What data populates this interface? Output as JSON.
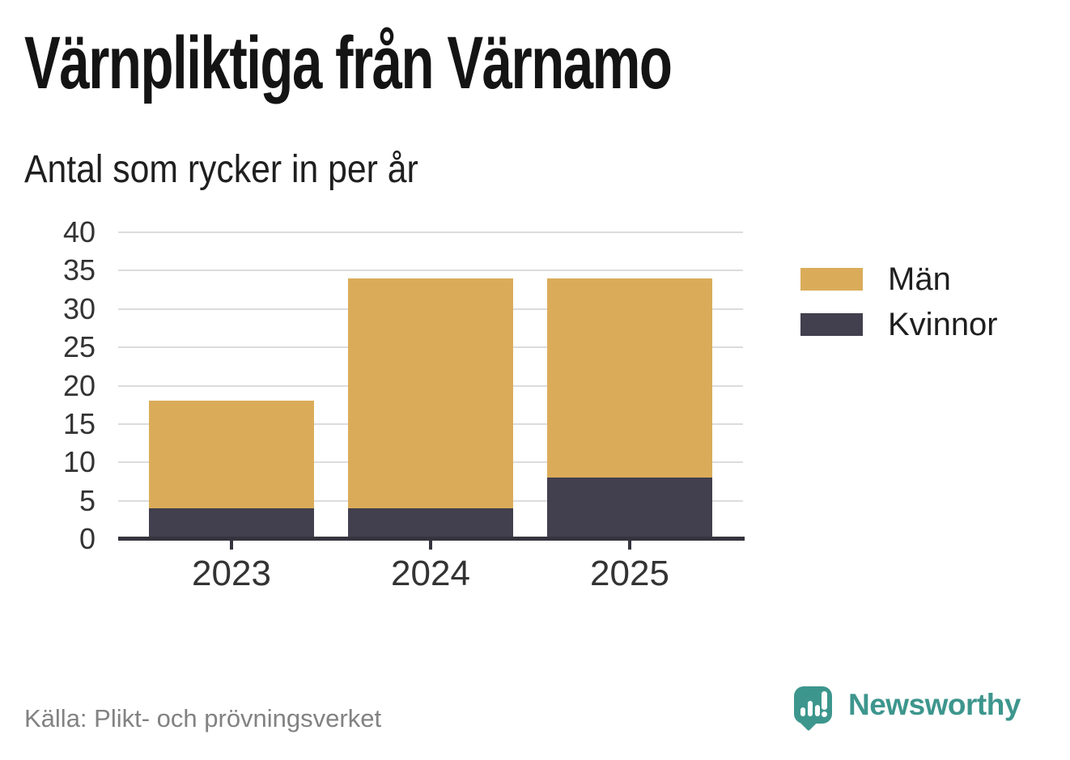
{
  "header": {
    "title": "Värnpliktiga från Värnamo",
    "subtitle": "Antal som rycker in per år"
  },
  "chart_data": {
    "type": "bar",
    "stacked": true,
    "categories": [
      "2023",
      "2024",
      "2025"
    ],
    "series": [
      {
        "name": "Män",
        "color": "#DAAC5A",
        "values": [
          14,
          30,
          26
        ]
      },
      {
        "name": "Kvinnor",
        "color": "#423F4E",
        "values": [
          4,
          4,
          8
        ]
      }
    ],
    "totals": [
      18,
      34,
      34
    ],
    "ylim": [
      0,
      40
    ],
    "yticks": [
      0,
      5,
      10,
      15,
      20,
      25,
      30,
      35,
      40
    ],
    "xlabel": "",
    "ylabel": "",
    "grid": true,
    "legend_position": "right"
  },
  "legend": {
    "items": [
      {
        "label": "Män"
      },
      {
        "label": "Kvinnor"
      }
    ]
  },
  "footer": {
    "source": "Källa: Plikt- och prövningsverket",
    "brand_name": "Newsworthy"
  },
  "icons": {
    "logo": "newsworthy-speech-bubble-bar-chart-icon"
  },
  "colors": {
    "background": "#FFFFFF",
    "title_text": "#141414",
    "axis_text": "#333333",
    "gridline": "#DCDCDC",
    "axis_line": "#35333D",
    "men": "#DAAC5A",
    "women": "#423F4E",
    "source_text": "#828282",
    "brand_teal": "#3D968D"
  }
}
